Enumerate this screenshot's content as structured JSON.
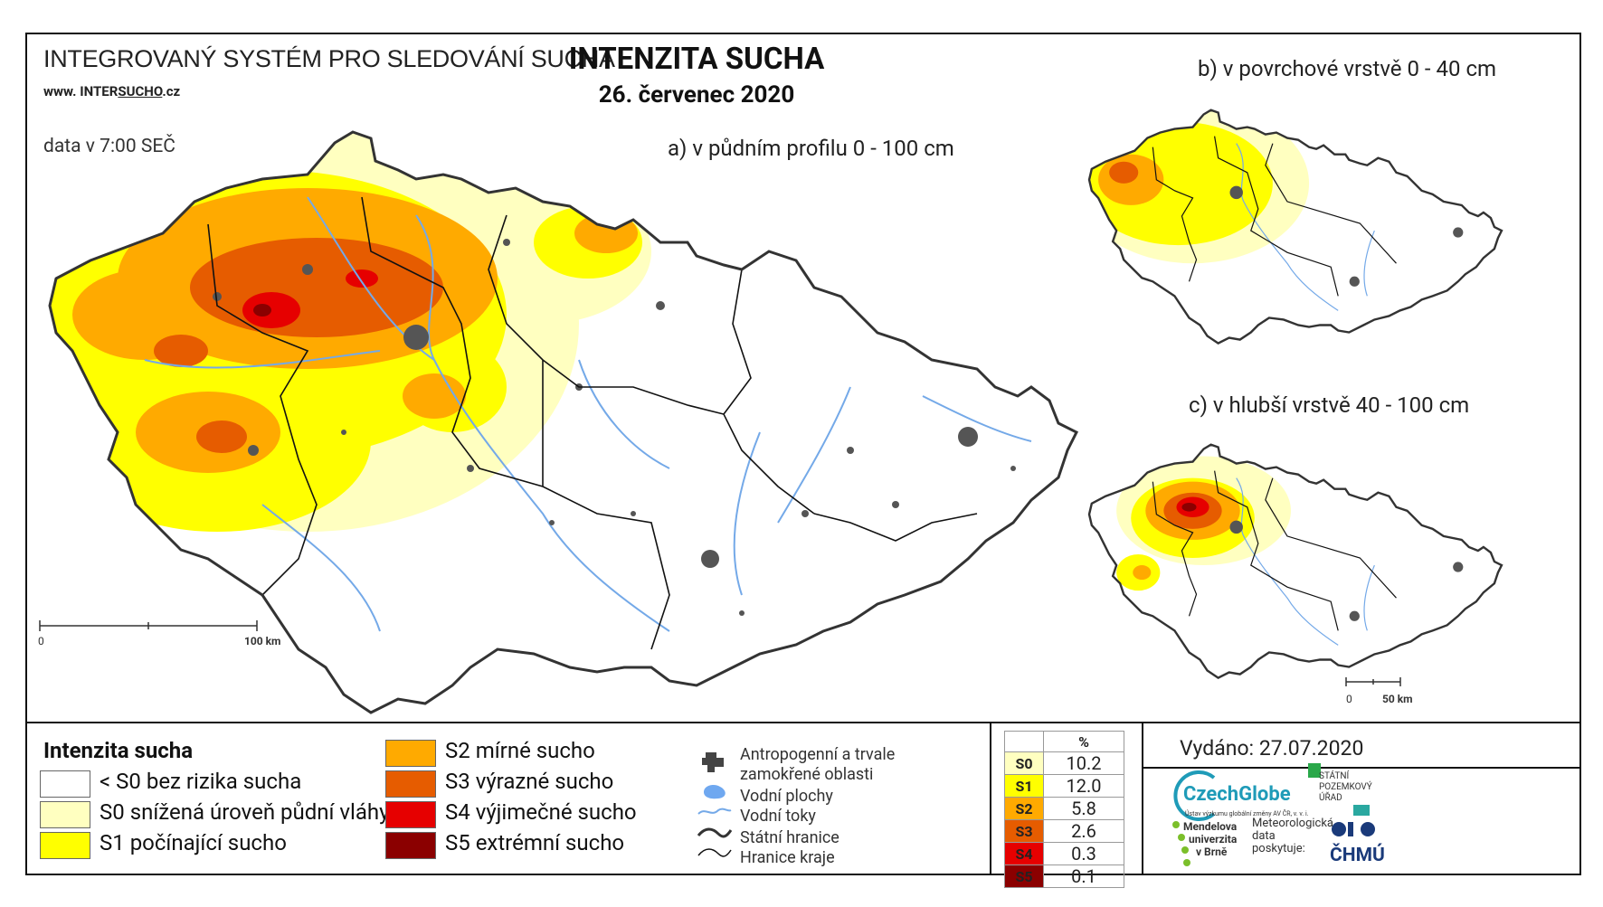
{
  "header": {
    "system_title": "INTEGROVANÝ SYSTÉM PRO SLEDOVÁNÍ SUCHA",
    "www_prefix": "www. INTER",
    "www_underlined": "SUCHO",
    "www_suffix": ".cz",
    "data_time": "data v 7:00 SEČ",
    "title": "INTENZITA SUCHA",
    "date": "26. červenec 2020"
  },
  "maps": {
    "a_label": "a) v půdním profilu 0 - 100 cm",
    "b_label": "b) v povrchové vrstvě 0 - 40 cm",
    "c_label": "c) v hlubší vrstvě 40 - 100 cm",
    "scale_main_start": "0",
    "scale_main_end": "100 km",
    "scale_small_start": "0",
    "scale_small_end": "50 km"
  },
  "legend": {
    "title": "Intenzita sucha",
    "classes": [
      {
        "label": "< S0 bez rizika sucha",
        "color": "#ffffff"
      },
      {
        "label": "S0 snížená úroveň půdní vláhy",
        "color": "#ffffc0"
      },
      {
        "label": "S1 počínající sucho",
        "color": "#ffff00"
      },
      {
        "label": "S2 mírné sucho",
        "color": "#ffaa00"
      },
      {
        "label": "S3 výrazné sucho",
        "color": "#e65c00"
      },
      {
        "label": "S4 výjimečné sucho",
        "color": "#e60000"
      },
      {
        "label": "S5 extrémní sucho",
        "color": "#8b0000"
      }
    ],
    "layers": [
      {
        "label_line1": "Antropogenní a trvale",
        "label_line2": "zamokřené oblasti",
        "icon": "urban-area-icon"
      },
      {
        "label_line1": "Vodní plochy",
        "icon": "water-body-icon"
      },
      {
        "label_line1": "Vodní toky",
        "icon": "river-icon"
      },
      {
        "label_line1": "Státní hranice",
        "icon": "state-border-icon"
      },
      {
        "label_line1": "Hranice kraje",
        "icon": "region-border-icon"
      }
    ]
  },
  "percent_table": {
    "header": "%",
    "rows": [
      {
        "code": "S0",
        "value": "10.2",
        "color": "#ffffc0"
      },
      {
        "code": "S1",
        "value": "12.0",
        "color": "#ffff00"
      },
      {
        "code": "S2",
        "value": "5.8",
        "color": "#ffaa00"
      },
      {
        "code": "S3",
        "value": "2.6",
        "color": "#e65c00"
      },
      {
        "code": "S4",
        "value": "0.3",
        "color": "#e60000"
      },
      {
        "code": "S5",
        "value": "0.1",
        "color": "#8b0000"
      }
    ]
  },
  "issued": "Vydáno: 27.07.2020",
  "logos": {
    "czechglobe": "CzechGlobe",
    "czechglobe_sub": "Ústav výzkumu globální změny AV ČR, v. v. i.",
    "spu_line1": "STÁTNÍ",
    "spu_line2": "POZEMKOVÝ",
    "spu_line3": "ÚŘAD",
    "mendel_line1": "Mendelova",
    "mendel_line2": "univerzita",
    "mendel_line3": "v Brně",
    "meteo_line1": "Meteorologická",
    "meteo_line2": "data",
    "meteo_line3": "poskytuje:",
    "chmu": "ČHMÚ"
  }
}
